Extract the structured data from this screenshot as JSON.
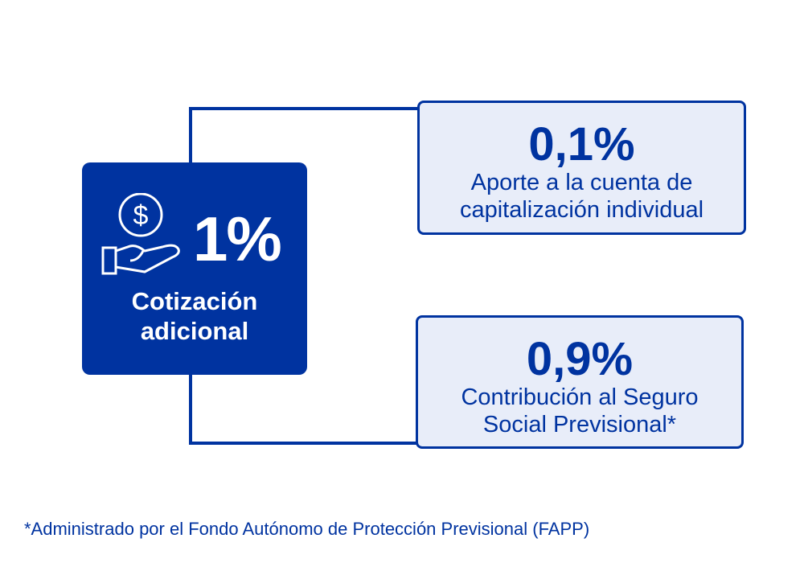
{
  "main": {
    "percent": "1%",
    "label_line1": "Cotización",
    "label_line2": "adicional",
    "icon": "hand-dollar-icon"
  },
  "cards": [
    {
      "percent": "0,1%",
      "line1": "Aporte a la cuenta de",
      "line2": "capitalización individual"
    },
    {
      "percent": "0,9%",
      "line1": "Contribución al Seguro",
      "line2": "Social Previsional*"
    }
  ],
  "footnote": "*Administrado por el Fondo Autónomo de Protección Previsional (FAPP)",
  "colors": {
    "primary": "#0033a0",
    "card_fill": "#e8edf9"
  }
}
